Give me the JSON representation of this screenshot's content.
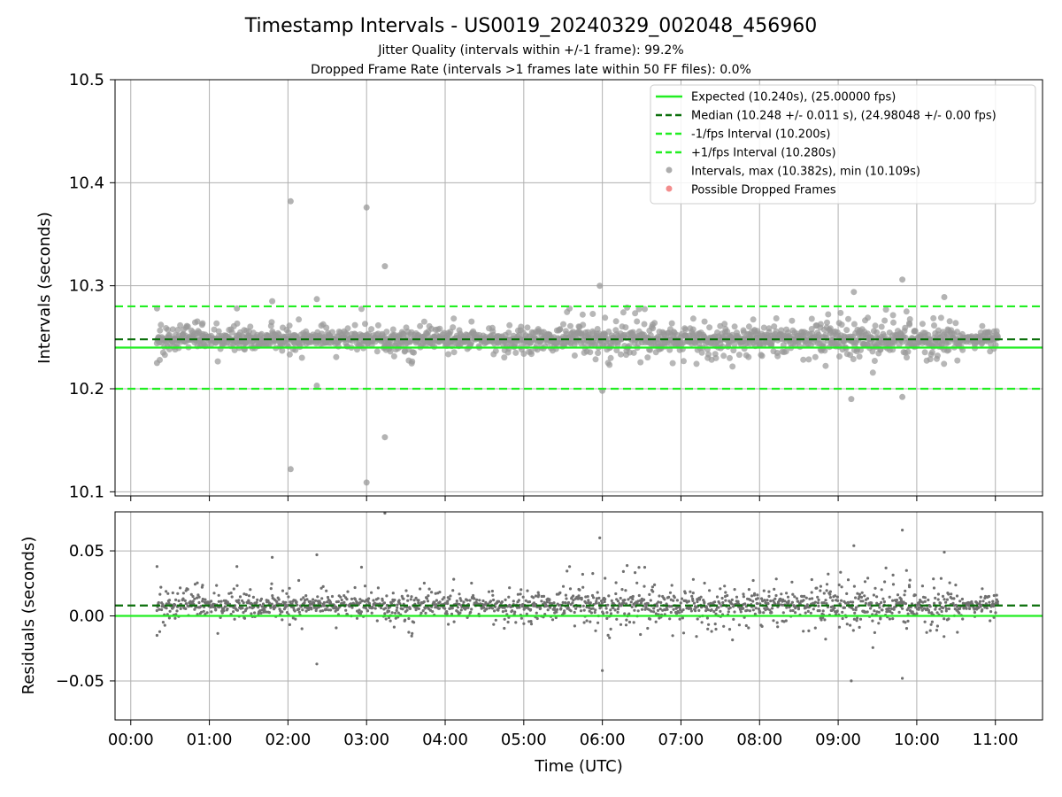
{
  "chart_data": [
    {
      "type": "scatter",
      "title": "Timestamp Intervals - US0019_20240329_002048_456960",
      "subtitle_lines": [
        "Jitter Quality (intervals within +/-1 frame): 99.2%",
        "Dropped Frame Rate (intervals >1 frames late within 50 FF files): 0.0%"
      ],
      "xlabel": "",
      "ylabel": "Intervals (seconds)",
      "xlim": [
        "00:00",
        "11:00"
      ],
      "ylim": [
        10.1,
        10.5
      ],
      "yticks": [
        "10.1",
        "10.2",
        "10.3",
        "10.4",
        "10.5"
      ],
      "grid": true,
      "legend_placement": "top-right",
      "legend": [
        {
          "label": "Expected (10.240s), (25.00000 fps)",
          "style": "line",
          "color": "#22ee22"
        },
        {
          "label": "Median (10.248 +/- 0.011 s), (24.98048 +/- 0.00 fps)",
          "style": "dashed",
          "color": "#0a6e0a"
        },
        {
          "label": "-1/fps Interval (10.200s)",
          "style": "dashed",
          "color": "#22ee22"
        },
        {
          "label": "+1/fps Interval (10.280s)",
          "style": "dashed",
          "color": "#22ee22"
        },
        {
          "label": "Intervals, max (10.382s), min (10.109s)",
          "style": "marker",
          "color": "#999999"
        },
        {
          "label": "Possible Dropped Frames",
          "style": "marker",
          "color": "#f07070"
        }
      ],
      "reference_lines": {
        "expected": 10.24,
        "median": 10.248,
        "minus_one_frame": 10.2,
        "plus_one_frame": 10.28
      },
      "data_time_range": [
        "00:20",
        "11:02"
      ],
      "outliers": [
        {
          "x": "00:20",
          "y": 10.278
        },
        {
          "x": "00:20",
          "y": 10.225
        },
        {
          "x": "01:21",
          "y": 10.278
        },
        {
          "x": "01:48",
          "y": 10.285
        },
        {
          "x": "02:02",
          "y": 10.382
        },
        {
          "x": "02:02",
          "y": 10.122
        },
        {
          "x": "02:22",
          "y": 10.287
        },
        {
          "x": "02:22",
          "y": 10.203
        },
        {
          "x": "03:00",
          "y": 10.376
        },
        {
          "x": "03:00",
          "y": 10.109
        },
        {
          "x": "03:14",
          "y": 10.319
        },
        {
          "x": "03:14",
          "y": 10.153
        },
        {
          "x": "05:58",
          "y": 10.3
        },
        {
          "x": "06:00",
          "y": 10.198
        },
        {
          "x": "09:12",
          "y": 10.294
        },
        {
          "x": "09:10",
          "y": 10.19
        },
        {
          "x": "09:49",
          "y": 10.306
        },
        {
          "x": "09:49",
          "y": 10.192
        },
        {
          "x": "10:21",
          "y": 10.289
        }
      ],
      "point_color": "#999999"
    },
    {
      "type": "scatter",
      "title": "",
      "xlabel": "Time (UTC)",
      "ylabel": "Residuals (seconds)",
      "xlim": [
        "00:00",
        "11:00"
      ],
      "ylim": [
        -0.08,
        0.08
      ],
      "yticks": [
        "−0.05",
        "0.00",
        "0.05"
      ],
      "xticks": [
        "00:00",
        "01:00",
        "02:00",
        "03:00",
        "04:00",
        "05:00",
        "06:00",
        "07:00",
        "08:00",
        "09:00",
        "10:00",
        "11:00"
      ],
      "grid": true,
      "reference_lines": {
        "zero": 0.0,
        "median_offset": 0.008
      },
      "point_color": "#707070"
    }
  ]
}
